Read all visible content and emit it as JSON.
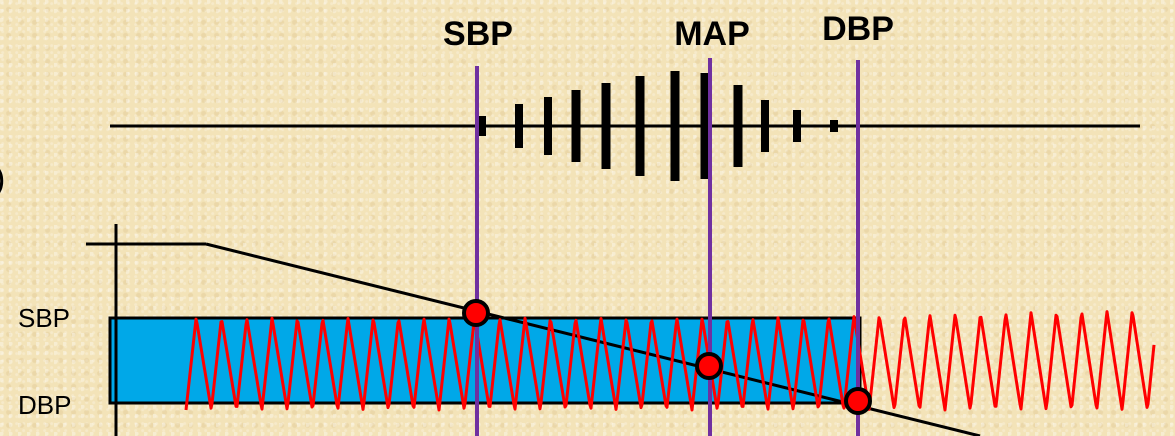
{
  "labels": {
    "sbp": "SBP",
    "map": "MAP",
    "dbp": "DBP",
    "paren": ")"
  },
  "axis": {
    "sbp": "SBP",
    "dbp": "DBP"
  },
  "colors": {
    "background": "#f3e3b8",
    "marker_line": "#7030a0",
    "pulse_wave": "#ff0000",
    "pressure_band": "#00a8e8",
    "oscillation_bars": "#000000",
    "cuff_line": "#000000",
    "intersection_dot": "#ff0000"
  }
}
